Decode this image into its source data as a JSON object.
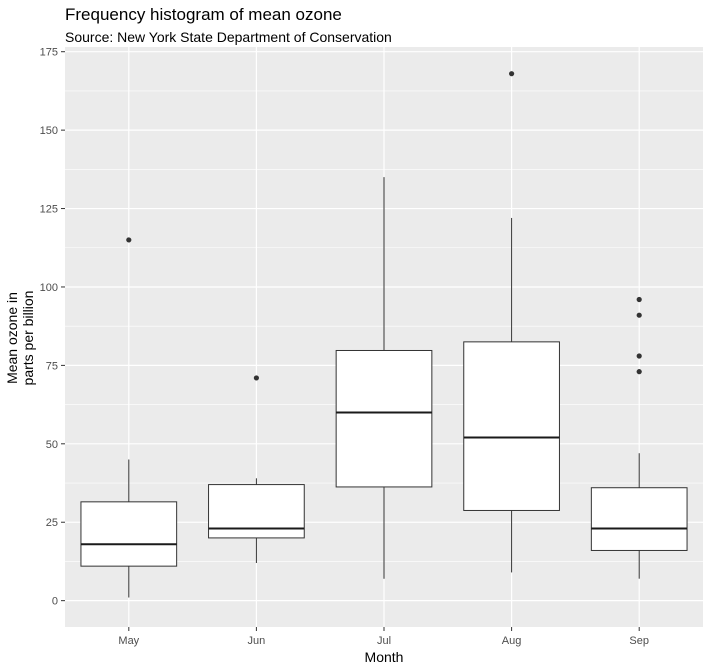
{
  "chart_data": {
    "type": "boxplot",
    "title": "Frequency histogram of mean ozone",
    "subtitle": "Source: New York State Department of Conservation",
    "xlabel": "Month",
    "ylabel_lines": [
      "Mean ozone in",
      "parts per billion"
    ],
    "categories": [
      "May",
      "Jun",
      "Jul",
      "Aug",
      "Sep"
    ],
    "yticks": [
      0,
      25,
      50,
      75,
      100,
      125,
      150,
      175
    ],
    "ylim": [
      -8.4,
      176.5
    ],
    "grid": true,
    "boxes": [
      {
        "category": "May",
        "min": 1,
        "q1": 11,
        "median": 18,
        "q3": 31.5,
        "max": 45,
        "outliers": [
          115
        ]
      },
      {
        "category": "Jun",
        "min": 12,
        "q1": 20,
        "median": 23,
        "q3": 37,
        "max": 39,
        "outliers": [
          71
        ]
      },
      {
        "category": "Jul",
        "min": 7,
        "q1": 36.25,
        "median": 60,
        "q3": 79.75,
        "max": 135,
        "outliers": []
      },
      {
        "category": "Aug",
        "min": 9,
        "q1": 28.75,
        "median": 52,
        "q3": 82.5,
        "max": 122,
        "outliers": [
          168
        ]
      },
      {
        "category": "Sep",
        "min": 7,
        "q1": 16,
        "median": 23,
        "q3": 36,
        "max": 47,
        "outliers": [
          96,
          91,
          78,
          73
        ]
      }
    ]
  }
}
